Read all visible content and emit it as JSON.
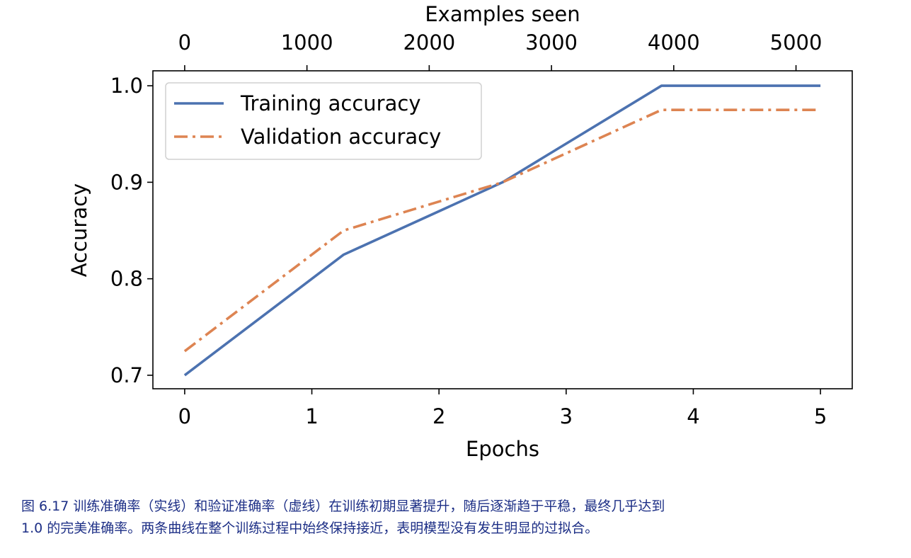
{
  "chart_data": {
    "type": "line",
    "x_bottom": {
      "label": "Epochs",
      "ticks": [
        0,
        1,
        2,
        3,
        4,
        5
      ],
      "tick_labels": [
        "0",
        "1",
        "2",
        "3",
        "4",
        "5"
      ],
      "range": [
        -0.25,
        5.25
      ]
    },
    "x_top": {
      "label": "Examples seen",
      "ticks": [
        0,
        1000,
        2000,
        3000,
        4000,
        5000
      ],
      "tick_labels": [
        "0",
        "1000",
        "2000",
        "3000",
        "4000",
        "5000"
      ]
    },
    "y": {
      "label": "Accuracy",
      "ticks": [
        0.7,
        0.8,
        0.9,
        1.0
      ],
      "tick_labels": [
        "0.7",
        "0.8",
        "0.9",
        "1.0"
      ],
      "range": [
        0.686,
        1.0155
      ]
    },
    "series": [
      {
        "name": "Training accuracy",
        "style": "solid",
        "color": "#4c72b0",
        "x": [
          0,
          1.25,
          2.5,
          3.75,
          5
        ],
        "y": [
          0.7,
          0.825,
          0.9,
          1.0,
          1.0
        ]
      },
      {
        "name": "Validation accuracy",
        "style": "dashdot",
        "color": "#dd8452",
        "x": [
          0,
          1.25,
          2.5,
          3.75,
          5
        ],
        "y": [
          0.725,
          0.85,
          0.9,
          0.975,
          0.975
        ]
      }
    ],
    "legend_position": "top-left",
    "grid": false
  },
  "caption": {
    "line1": "图 6.17 训练准确率（实线）和验证准确率（虚线）在训练初期显著提升，随后逐渐趋于平稳，最终几乎达到",
    "line2": "1.0 的完美准确率。两条曲线在整个训练过程中始终保持接近，表明模型没有发生明显的过拟合。"
  }
}
